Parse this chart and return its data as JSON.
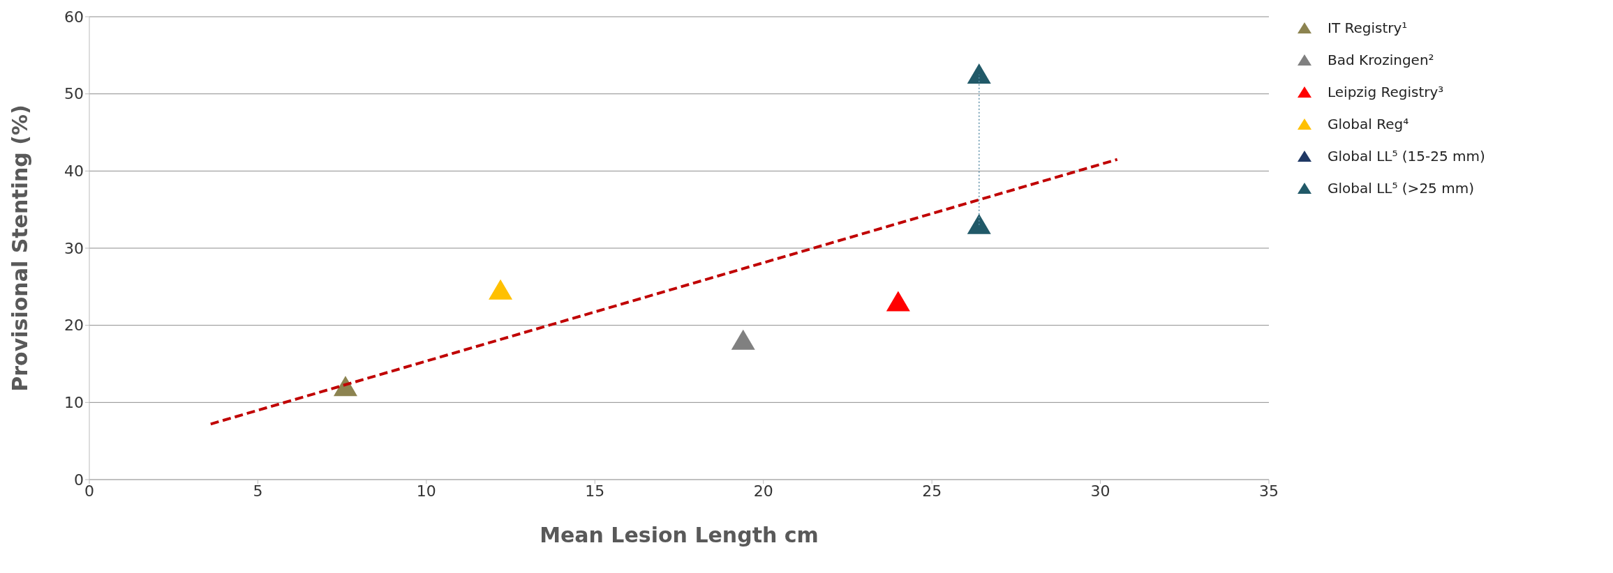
{
  "chart_data": {
    "type": "scatter",
    "xlabel": "Mean Lesion Length cm",
    "ylabel": "Provisional Stenting (%)",
    "xlim": [
      0,
      35
    ],
    "xticks": [
      0,
      5,
      10,
      15,
      20,
      25,
      30,
      35
    ],
    "ylim": [
      0,
      60
    ],
    "yticks": [
      0,
      10,
      20,
      30,
      40,
      50,
      60
    ],
    "grid": "y",
    "legend": "right",
    "marker": "triangle",
    "series": [
      {
        "name": "IT Registry¹",
        "color": "#8c8350",
        "x": [
          7.6
        ],
        "values": [
          12
        ]
      },
      {
        "name": "Bad Krozingen²",
        "color": "#808080",
        "x": [
          19.4
        ],
        "values": [
          18
        ]
      },
      {
        "name": "Leipzig Registry³",
        "color": "#ff0000",
        "x": [
          24
        ],
        "values": [
          23
        ]
      },
      {
        "name": "Global Reg⁴",
        "color": "#ffc000",
        "x": [
          12.2
        ],
        "values": [
          24.5
        ]
      },
      {
        "name": "Global LL⁵ (15-25 mm)",
        "color": "#1f3864"
      },
      {
        "name": "Global LL⁵ (>25 mm)",
        "color": "#215968",
        "x": [
          26.4,
          26.4
        ],
        "values": [
          33,
          52.5
        ]
      },
      {
        "type": "line",
        "color": "#5b8fa8",
        "line_style": "dotted",
        "marker": "none",
        "x": [
          26.4,
          26.4
        ],
        "values": [
          33,
          52.5
        ]
      },
      {
        "type": "line",
        "color": "#c00000",
        "line_style": "dashed",
        "marker": "none",
        "x": [
          3.6,
          30.5
        ],
        "values": [
          7.2,
          41.5
        ]
      }
    ]
  }
}
